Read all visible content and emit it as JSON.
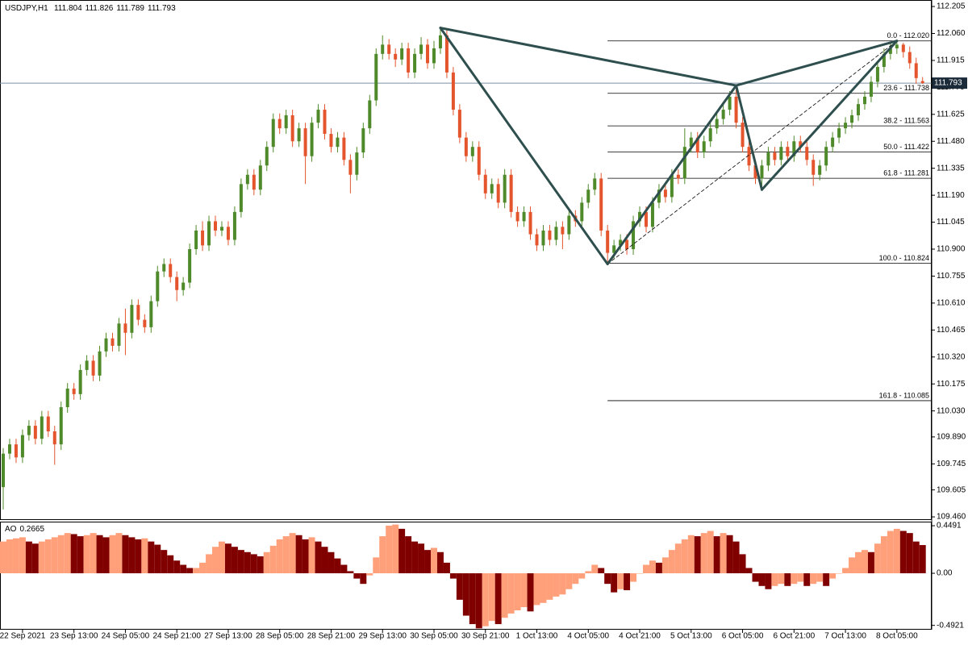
{
  "chart_data": [
    {
      "type": "candlestick",
      "symbol": "USDJPY,H1",
      "up_color": "#4f8a2a",
      "down_color": "#e4552d",
      "ylim": [
        109.443,
        112.24
      ],
      "yticks": [
        {
          "value": 109.46,
          "label": "109.460"
        },
        109.605,
        109.745,
        {
          "value": 109.89,
          "label": "109.890"
        },
        {
          "value": 110.03,
          "label": "110.030"
        },
        110.175,
        {
          "value": 110.32,
          "label": "110.320"
        },
        110.465,
        {
          "value": 110.61,
          "label": "110.610"
        },
        110.755,
        {
          "value": 110.9,
          "label": "110.900"
        },
        111.045,
        {
          "value": 111.19,
          "label": "111.190"
        },
        111.335,
        {
          "value": 111.48,
          "label": "111.480"
        },
        111.625,
        {
          "value": 111.77,
          "label": "111.770"
        },
        111.915,
        {
          "value": 112.06,
          "label": "112.060"
        },
        112.205
      ],
      "categories": [
        null,
        null,
        null,
        "22 Sep 2021",
        null,
        null,
        null,
        null,
        null,
        null,
        null,
        "23 Sep 13:00",
        null,
        null,
        null,
        null,
        null,
        null,
        null,
        "24 Sep 05:00",
        null,
        null,
        null,
        null,
        null,
        null,
        null,
        "24 Sep 21:00",
        null,
        null,
        null,
        null,
        null,
        null,
        null,
        "27 Sep 13:00",
        null,
        null,
        null,
        null,
        null,
        null,
        null,
        "28 Sep 05:00",
        null,
        null,
        null,
        null,
        null,
        null,
        null,
        "28 Sep 21:00",
        null,
        null,
        null,
        null,
        null,
        null,
        null,
        "29 Sep 13:00",
        null,
        null,
        null,
        null,
        null,
        null,
        null,
        "30 Sep 05:00",
        null,
        null,
        null,
        null,
        null,
        null,
        null,
        "30 Sep 21:00",
        null,
        null,
        null,
        null,
        null,
        null,
        null,
        "1 Oct 13:00",
        null,
        null,
        null,
        null,
        null,
        null,
        null,
        "4 Oct 05:00",
        null,
        null,
        null,
        null,
        null,
        null,
        null,
        "4 Oct 21:00",
        null,
        null,
        null,
        null,
        null,
        null,
        null,
        "5 Oct 13:00",
        null,
        null,
        null,
        null,
        null,
        null,
        null,
        "6 Oct 05:00",
        null,
        null,
        null,
        null,
        null,
        null,
        null,
        "6 Oct 21:00",
        null,
        null,
        null,
        null,
        null,
        null,
        null,
        "7 Oct 13:00",
        null,
        null,
        null,
        null,
        null,
        null,
        null,
        "8 Oct 05:00",
        null,
        null,
        null,
        null
      ],
      "open": [
        109.62,
        109.8,
        109.85,
        109.78,
        109.9,
        109.95,
        109.88,
        110.0,
        109.92,
        109.85,
        110.05,
        110.15,
        110.12,
        110.25,
        110.3,
        110.22,
        110.35,
        110.42,
        110.38,
        110.5,
        110.45,
        110.6,
        110.52,
        110.48,
        110.62,
        110.78,
        110.82,
        110.75,
        110.68,
        110.72,
        110.9,
        111.0,
        110.92,
        111.05,
        111.0,
        111.02,
        110.95,
        111.1,
        111.25,
        111.3,
        111.22,
        111.35,
        111.45,
        111.6,
        111.55,
        111.62,
        111.48,
        111.55,
        111.4,
        111.58,
        111.65,
        111.52,
        111.45,
        111.5,
        111.38,
        111.3,
        111.42,
        111.55,
        111.7,
        111.95,
        112.0,
        111.95,
        111.92,
        111.98,
        111.85,
        111.95,
        112.0,
        111.9,
        111.98,
        112.05,
        111.85,
        111.65,
        111.5,
        111.4,
        111.45,
        111.3,
        111.2,
        111.25,
        111.15,
        111.3,
        111.1,
        111.05,
        111.1,
        110.98,
        110.92,
        111.0,
        110.95,
        111.02,
        110.98,
        111.08,
        111.05,
        111.15,
        111.22,
        111.28,
        111.0,
        110.88,
        110.92,
        110.95,
        110.9,
        111.05,
        111.1,
        111.02,
        111.15,
        111.22,
        111.18,
        111.3,
        111.28,
        111.45,
        111.5,
        111.42,
        111.48,
        111.55,
        111.6,
        111.65,
        111.72,
        111.58,
        111.45,
        111.35,
        111.28,
        111.35,
        111.42,
        111.38,
        111.45,
        111.4,
        111.48,
        111.45,
        111.38,
        111.3,
        111.35,
        111.45,
        111.5,
        111.55,
        111.58,
        111.62,
        111.68,
        111.72,
        111.8,
        111.88,
        111.95,
        111.98,
        112.0,
        111.96,
        111.9,
        111.804
      ],
      "high": [
        109.83,
        109.88,
        109.88,
        109.93,
        109.98,
        109.98,
        110.03,
        110.03,
        109.95,
        110.08,
        110.18,
        110.18,
        110.28,
        110.33,
        110.33,
        110.38,
        110.45,
        110.45,
        110.53,
        110.58,
        110.63,
        110.63,
        110.55,
        110.65,
        110.81,
        110.85,
        110.85,
        110.78,
        110.75,
        110.93,
        111.03,
        111.05,
        111.08,
        111.08,
        111.05,
        111.05,
        111.13,
        111.28,
        111.33,
        111.33,
        111.38,
        111.48,
        111.63,
        111.63,
        111.65,
        111.65,
        111.58,
        111.58,
        111.61,
        111.68,
        111.68,
        111.55,
        111.53,
        111.53,
        111.41,
        111.45,
        111.58,
        111.73,
        111.98,
        112.05,
        112.03,
        111.98,
        112.01,
        112.01,
        111.98,
        112.04,
        112.03,
        112.02,
        112.09,
        112.08,
        111.88,
        111.68,
        111.53,
        111.48,
        111.48,
        111.33,
        111.28,
        111.28,
        111.33,
        111.33,
        111.13,
        111.13,
        111.13,
        111.01,
        111.03,
        111.03,
        111.05,
        111.05,
        111.11,
        111.11,
        111.18,
        111.25,
        111.31,
        111.31,
        111.03,
        110.95,
        110.98,
        110.98,
        111.08,
        111.13,
        111.13,
        111.18,
        111.25,
        111.25,
        111.33,
        111.33,
        111.55,
        111.53,
        111.53,
        111.51,
        111.58,
        111.63,
        111.68,
        111.75,
        111.78,
        111.61,
        111.48,
        111.38,
        111.38,
        111.45,
        111.45,
        111.48,
        111.48,
        111.51,
        111.51,
        111.48,
        111.41,
        111.38,
        111.48,
        111.53,
        111.58,
        111.61,
        111.65,
        111.71,
        111.75,
        111.83,
        111.91,
        111.98,
        112.01,
        112.02,
        112.01,
        111.99,
        111.93,
        111.826
      ],
      "low": [
        109.5,
        109.77,
        109.75,
        109.75,
        109.87,
        109.85,
        109.85,
        109.89,
        109.74,
        109.82,
        110.02,
        110.09,
        110.09,
        110.22,
        110.19,
        110.19,
        110.32,
        110.35,
        110.35,
        110.33,
        110.42,
        110.49,
        110.45,
        110.45,
        110.59,
        110.75,
        110.72,
        110.62,
        110.65,
        110.69,
        110.87,
        110.89,
        110.89,
        110.97,
        110.97,
        110.92,
        110.92,
        111.07,
        111.22,
        111.19,
        111.19,
        111.32,
        111.42,
        111.52,
        111.52,
        111.45,
        111.45,
        111.25,
        111.37,
        111.55,
        111.49,
        111.42,
        111.42,
        111.35,
        111.2,
        111.27,
        111.39,
        111.52,
        111.67,
        111.92,
        111.92,
        111.88,
        111.89,
        111.82,
        111.82,
        111.92,
        111.87,
        111.87,
        111.95,
        111.82,
        111.62,
        111.47,
        111.37,
        111.37,
        111.27,
        111.17,
        111.17,
        111.12,
        111.12,
        111.07,
        111.02,
        111.02,
        110.95,
        110.89,
        110.89,
        110.92,
        110.92,
        110.9,
        110.95,
        111.02,
        111.02,
        111.12,
        111.19,
        110.97,
        110.82,
        110.85,
        110.89,
        110.87,
        110.87,
        111.02,
        110.99,
        110.99,
        111.12,
        111.15,
        111.15,
        111.25,
        111.25,
        111.42,
        111.39,
        111.39,
        111.45,
        111.52,
        111.57,
        111.62,
        111.55,
        111.42,
        111.32,
        111.25,
        111.22,
        111.32,
        111.35,
        111.35,
        111.37,
        111.37,
        111.42,
        111.35,
        111.24,
        111.27,
        111.32,
        111.42,
        111.47,
        111.52,
        111.55,
        111.59,
        111.65,
        111.69,
        111.77,
        111.85,
        111.92,
        111.95,
        111.93,
        111.87,
        111.79,
        111.789
      ],
      "close": [
        109.8,
        109.85,
        109.78,
        109.9,
        109.95,
        109.88,
        110.0,
        109.92,
        109.85,
        110.05,
        110.15,
        110.12,
        110.25,
        110.3,
        110.22,
        110.35,
        110.42,
        110.38,
        110.5,
        110.45,
        110.6,
        110.52,
        110.48,
        110.62,
        110.78,
        110.82,
        110.75,
        110.68,
        110.72,
        110.9,
        111.0,
        110.92,
        111.05,
        111.0,
        111.02,
        110.95,
        111.1,
        111.25,
        111.3,
        111.22,
        111.35,
        111.45,
        111.6,
        111.55,
        111.62,
        111.48,
        111.55,
        111.4,
        111.58,
        111.65,
        111.52,
        111.45,
        111.5,
        111.38,
        111.3,
        111.42,
        111.55,
        111.7,
        111.95,
        112.0,
        111.95,
        111.92,
        111.98,
        111.85,
        111.95,
        112.0,
        111.9,
        111.98,
        112.05,
        111.85,
        111.65,
        111.5,
        111.4,
        111.45,
        111.3,
        111.2,
        111.25,
        111.15,
        111.3,
        111.1,
        111.05,
        111.1,
        110.98,
        110.92,
        111.0,
        110.95,
        111.02,
        110.98,
        111.08,
        111.05,
        111.15,
        111.22,
        111.28,
        111.0,
        110.88,
        110.92,
        110.95,
        110.9,
        111.05,
        111.1,
        111.02,
        111.15,
        111.22,
        111.18,
        111.3,
        111.28,
        111.45,
        111.5,
        111.42,
        111.48,
        111.55,
        111.6,
        111.65,
        111.72,
        111.58,
        111.45,
        111.35,
        111.28,
        111.35,
        111.42,
        111.38,
        111.45,
        111.4,
        111.48,
        111.45,
        111.38,
        111.3,
        111.35,
        111.45,
        111.5,
        111.55,
        111.58,
        111.62,
        111.68,
        111.72,
        111.8,
        111.88,
        111.95,
        111.98,
        112.0,
        111.96,
        111.9,
        111.82,
        111.793
      ],
      "pattern": {
        "color": "#2f4f4f",
        "points": [
          {
            "bar": 68,
            "price": 112.09
          },
          {
            "bar": 94,
            "price": 110.82
          },
          {
            "bar": 114,
            "price": 111.78
          },
          {
            "bar": 118,
            "price": 111.22
          },
          {
            "bar": 139,
            "price": 112.02
          }
        ],
        "edges": [
          [
            0,
            1
          ],
          [
            0,
            2
          ],
          [
            1,
            2
          ],
          [
            2,
            3
          ],
          [
            3,
            4
          ],
          [
            2,
            4
          ]
        ],
        "dashed_edges": [
          [
            1,
            4
          ]
        ]
      },
      "fibonacci": {
        "start_bar": 94,
        "levels": [
          {
            "label": "0.0 - 112.020",
            "price": 112.02
          },
          {
            "label": "23.6 - 111.738",
            "price": 111.738
          },
          {
            "label": "38.2 - 111.563",
            "price": 111.563
          },
          {
            "label": "50.0 - 111.422",
            "price": 111.422
          },
          {
            "label": "61.8 - 111.281",
            "price": 111.281
          },
          {
            "label": "100.0 - 110.824",
            "price": 110.824
          },
          {
            "label": "161.8 - 110.085",
            "price": 110.085
          }
        ]
      }
    },
    {
      "type": "oscillator",
      "title": "AO",
      "up_color": "#ffa07a",
      "down_color": "#800000",
      "ylim": [
        -0.525,
        0.48
      ],
      "yticks": [
        0.4491,
        {
          "value": 0,
          "label": "0.00"
        },
        -0.4921
      ],
      "values": [
        0.3,
        0.32,
        0.33,
        0.34,
        0.3,
        0.28,
        0.3,
        0.32,
        0.34,
        0.36,
        0.38,
        0.37,
        0.35,
        0.36,
        0.38,
        0.36,
        0.34,
        0.36,
        0.38,
        0.36,
        0.34,
        0.32,
        0.33,
        0.3,
        0.27,
        0.22,
        0.17,
        0.12,
        0.08,
        0.05,
        0.05,
        0.1,
        0.18,
        0.25,
        0.3,
        0.28,
        0.25,
        0.22,
        0.2,
        0.18,
        0.16,
        0.2,
        0.26,
        0.32,
        0.35,
        0.38,
        0.36,
        0.32,
        0.34,
        0.3,
        0.25,
        0.2,
        0.14,
        0.08,
        0.02,
        -0.05,
        -0.1,
        -0.02,
        0.15,
        0.35,
        0.45,
        0.46,
        0.42,
        0.35,
        0.3,
        0.28,
        0.22,
        0.24,
        0.2,
        0.1,
        -0.05,
        -0.25,
        -0.4,
        -0.48,
        -0.52,
        -0.5,
        -0.45,
        -0.48,
        -0.42,
        -0.38,
        -0.35,
        -0.32,
        -0.36,
        -0.3,
        -0.28,
        -0.25,
        -0.22,
        -0.2,
        -0.15,
        -0.1,
        -0.05,
        0.02,
        0.08,
        0.05,
        -0.1,
        -0.18,
        -0.15,
        -0.16,
        -0.08,
        0.0,
        0.08,
        0.12,
        0.1,
        0.15,
        0.22,
        0.28,
        0.32,
        0.36,
        0.35,
        0.38,
        0.4,
        0.35,
        0.38,
        0.36,
        0.3,
        0.18,
        0.05,
        -0.08,
        -0.12,
        -0.15,
        -0.12,
        -0.1,
        -0.12,
        -0.1,
        -0.08,
        -0.12,
        -0.1,
        -0.08,
        -0.12,
        -0.05,
        0.0,
        0.05,
        0.15,
        0.2,
        0.22,
        0.2,
        0.28,
        0.35,
        0.4,
        0.42,
        0.4,
        0.38,
        0.3,
        0.2665
      ]
    }
  ]
}
